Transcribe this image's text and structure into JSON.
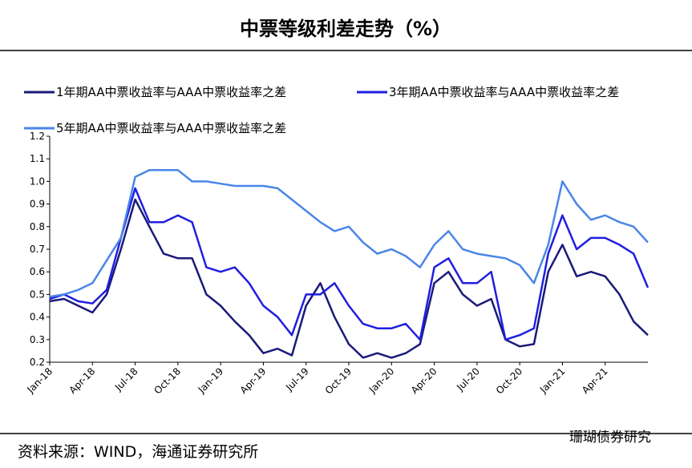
{
  "chart_data": {
    "type": "line",
    "title": "中票等级利差走势（%）",
    "source": "资料来源：WIND，海通证券研究所",
    "watermark": "珊瑚债券研究",
    "x": [
      "Jan-18",
      null,
      null,
      "Apr-18",
      null,
      null,
      "Jul-18",
      null,
      null,
      "Oct-18",
      null,
      null,
      "Jan-19",
      null,
      null,
      "Apr-19",
      null,
      null,
      "Jul-19",
      null,
      null,
      "Oct-19",
      null,
      null,
      "Jan-20",
      null,
      null,
      "Apr-20",
      null,
      null,
      "Jul-20",
      null,
      null,
      "Oct-20",
      null,
      null,
      "Jan-21",
      null,
      null,
      "Apr-21",
      null,
      null,
      null
    ],
    "series": [
      {
        "name": "1年期AA中票收益率与AAA中票收益率之差",
        "color": "#1a1a7a",
        "values": [
          0.47,
          0.48,
          0.45,
          0.42,
          0.5,
          0.7,
          0.92,
          0.8,
          0.68,
          0.66,
          0.66,
          0.5,
          0.45,
          0.38,
          0.32,
          0.24,
          0.26,
          0.23,
          0.45,
          0.55,
          0.4,
          0.28,
          0.22,
          0.24,
          0.22,
          0.24,
          0.28,
          0.55,
          0.6,
          0.5,
          0.45,
          0.48,
          0.3,
          0.27,
          0.28,
          0.6,
          0.72,
          0.58,
          0.6,
          0.58,
          0.5,
          0.38,
          0.32
        ]
      },
      {
        "name": "3年期AA中票收益率与AAA中票收益率之差",
        "color": "#1f1fe0",
        "values": [
          0.48,
          0.5,
          0.47,
          0.46,
          0.52,
          0.75,
          0.97,
          0.82,
          0.82,
          0.85,
          0.82,
          0.62,
          0.6,
          0.62,
          0.55,
          0.45,
          0.4,
          0.32,
          0.5,
          0.5,
          0.55,
          0.45,
          0.37,
          0.35,
          0.35,
          0.37,
          0.3,
          0.62,
          0.66,
          0.55,
          0.55,
          0.6,
          0.3,
          0.32,
          0.35,
          0.68,
          0.85,
          0.7,
          0.75,
          0.75,
          0.72,
          0.68,
          0.53
        ]
      },
      {
        "name": "5年期AA中票收益率与AAA中票收益率之差",
        "color": "#4a86e8",
        "values": [
          0.49,
          0.5,
          0.52,
          0.55,
          0.65,
          0.75,
          1.02,
          1.05,
          1.05,
          1.05,
          1.0,
          1.0,
          0.99,
          0.98,
          0.98,
          0.98,
          0.97,
          0.92,
          0.87,
          0.82,
          0.78,
          0.8,
          0.73,
          0.68,
          0.7,
          0.67,
          0.62,
          0.72,
          0.78,
          0.7,
          0.68,
          0.67,
          0.66,
          0.63,
          0.55,
          0.72,
          1.0,
          0.9,
          0.83,
          0.85,
          0.82,
          0.8,
          0.73
        ]
      }
    ],
    "ylim": [
      0.2,
      1.2
    ],
    "yticks": [
      0.2,
      0.3,
      0.4,
      0.5,
      0.6,
      0.7,
      0.8,
      0.9,
      {
        "value": 1,
        "label": "1.0"
      },
      1.1,
      1.2
    ],
    "grid": false
  }
}
